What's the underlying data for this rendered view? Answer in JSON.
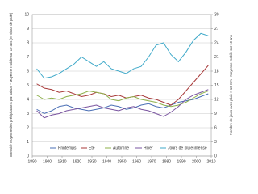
{
  "chart_data": {
    "type": "line",
    "ylabel": "Intensité moyenne des précipitations par saison - Moyenne mobile sur 10 ans (mm/jour de pluie)",
    "y2label": "Nombre de jours avec pluie > 10 mm - Moyenne mobile sur 10 ans",
    "x": [
      1893,
      1898,
      1903,
      1908,
      1913,
      1918,
      1923,
      1928,
      1933,
      1938,
      1943,
      1948,
      1953,
      1958,
      1963,
      1968,
      1973,
      1978,
      1983,
      1988,
      1993,
      1998,
      2003,
      2008
    ],
    "xlim": [
      1890,
      2010
    ],
    "xticks": [
      1890,
      1900,
      1910,
      1920,
      1930,
      1940,
      1950,
      1960,
      1970,
      1980,
      1990,
      2000,
      2010
    ],
    "ylim": [
      0,
      10
    ],
    "yticks": [
      0,
      1,
      2,
      3,
      4,
      5,
      6,
      7,
      8,
      9,
      10
    ],
    "y2lim": [
      0,
      30
    ],
    "y2ticks": [
      0,
      3,
      6,
      9,
      12,
      15,
      18,
      21,
      24,
      27,
      30
    ],
    "grid": true,
    "series": [
      {
        "name": "Printemps",
        "color": "#4a6fb5",
        "values": [
          3.3,
          3.0,
          3.2,
          3.5,
          3.6,
          3.4,
          3.3,
          3.2,
          3.3,
          3.4,
          3.6,
          3.5,
          3.3,
          3.4,
          3.6,
          3.7,
          3.5,
          3.4,
          3.6,
          3.8,
          3.9,
          4.0,
          4.2,
          4.4
        ]
      },
      {
        "name": "Eté",
        "color": "#a83a3a",
        "values": [
          5.1,
          4.8,
          4.7,
          4.5,
          4.6,
          4.4,
          4.2,
          4.3,
          4.5,
          4.4,
          4.2,
          4.3,
          4.1,
          4.2,
          4.3,
          4.1,
          4.0,
          3.8,
          3.6,
          4.0,
          4.6,
          5.2,
          5.8,
          6.4
        ]
      },
      {
        "name": "Automne",
        "color": "#8db04a",
        "values": [
          4.3,
          4.0,
          4.1,
          4.0,
          4.2,
          4.3,
          4.4,
          4.6,
          4.5,
          4.4,
          4.0,
          3.9,
          4.1,
          4.2,
          4.0,
          3.9,
          3.8,
          3.6,
          3.5,
          3.6,
          3.8,
          4.1,
          4.4,
          4.6
        ]
      },
      {
        "name": "Hiver",
        "color": "#7a55a0",
        "values": [
          3.2,
          2.7,
          2.9,
          3.0,
          3.2,
          3.3,
          3.4,
          3.5,
          3.6,
          3.4,
          3.3,
          3.2,
          3.4,
          3.5,
          3.3,
          3.2,
          3.0,
          2.8,
          3.1,
          3.5,
          4.0,
          4.3,
          4.5,
          4.7
        ]
      },
      {
        "name": "Jours de pluie intense",
        "color": "#3fa9c9",
        "axis": "y2",
        "values": [
          18.5,
          16.5,
          16.8,
          17.5,
          18.5,
          19.5,
          21,
          20,
          19,
          20,
          18.5,
          18,
          17.5,
          18.5,
          19,
          21,
          23.5,
          24,
          21.5,
          20,
          22,
          24.5,
          26,
          25.5
        ]
      }
    ]
  }
}
